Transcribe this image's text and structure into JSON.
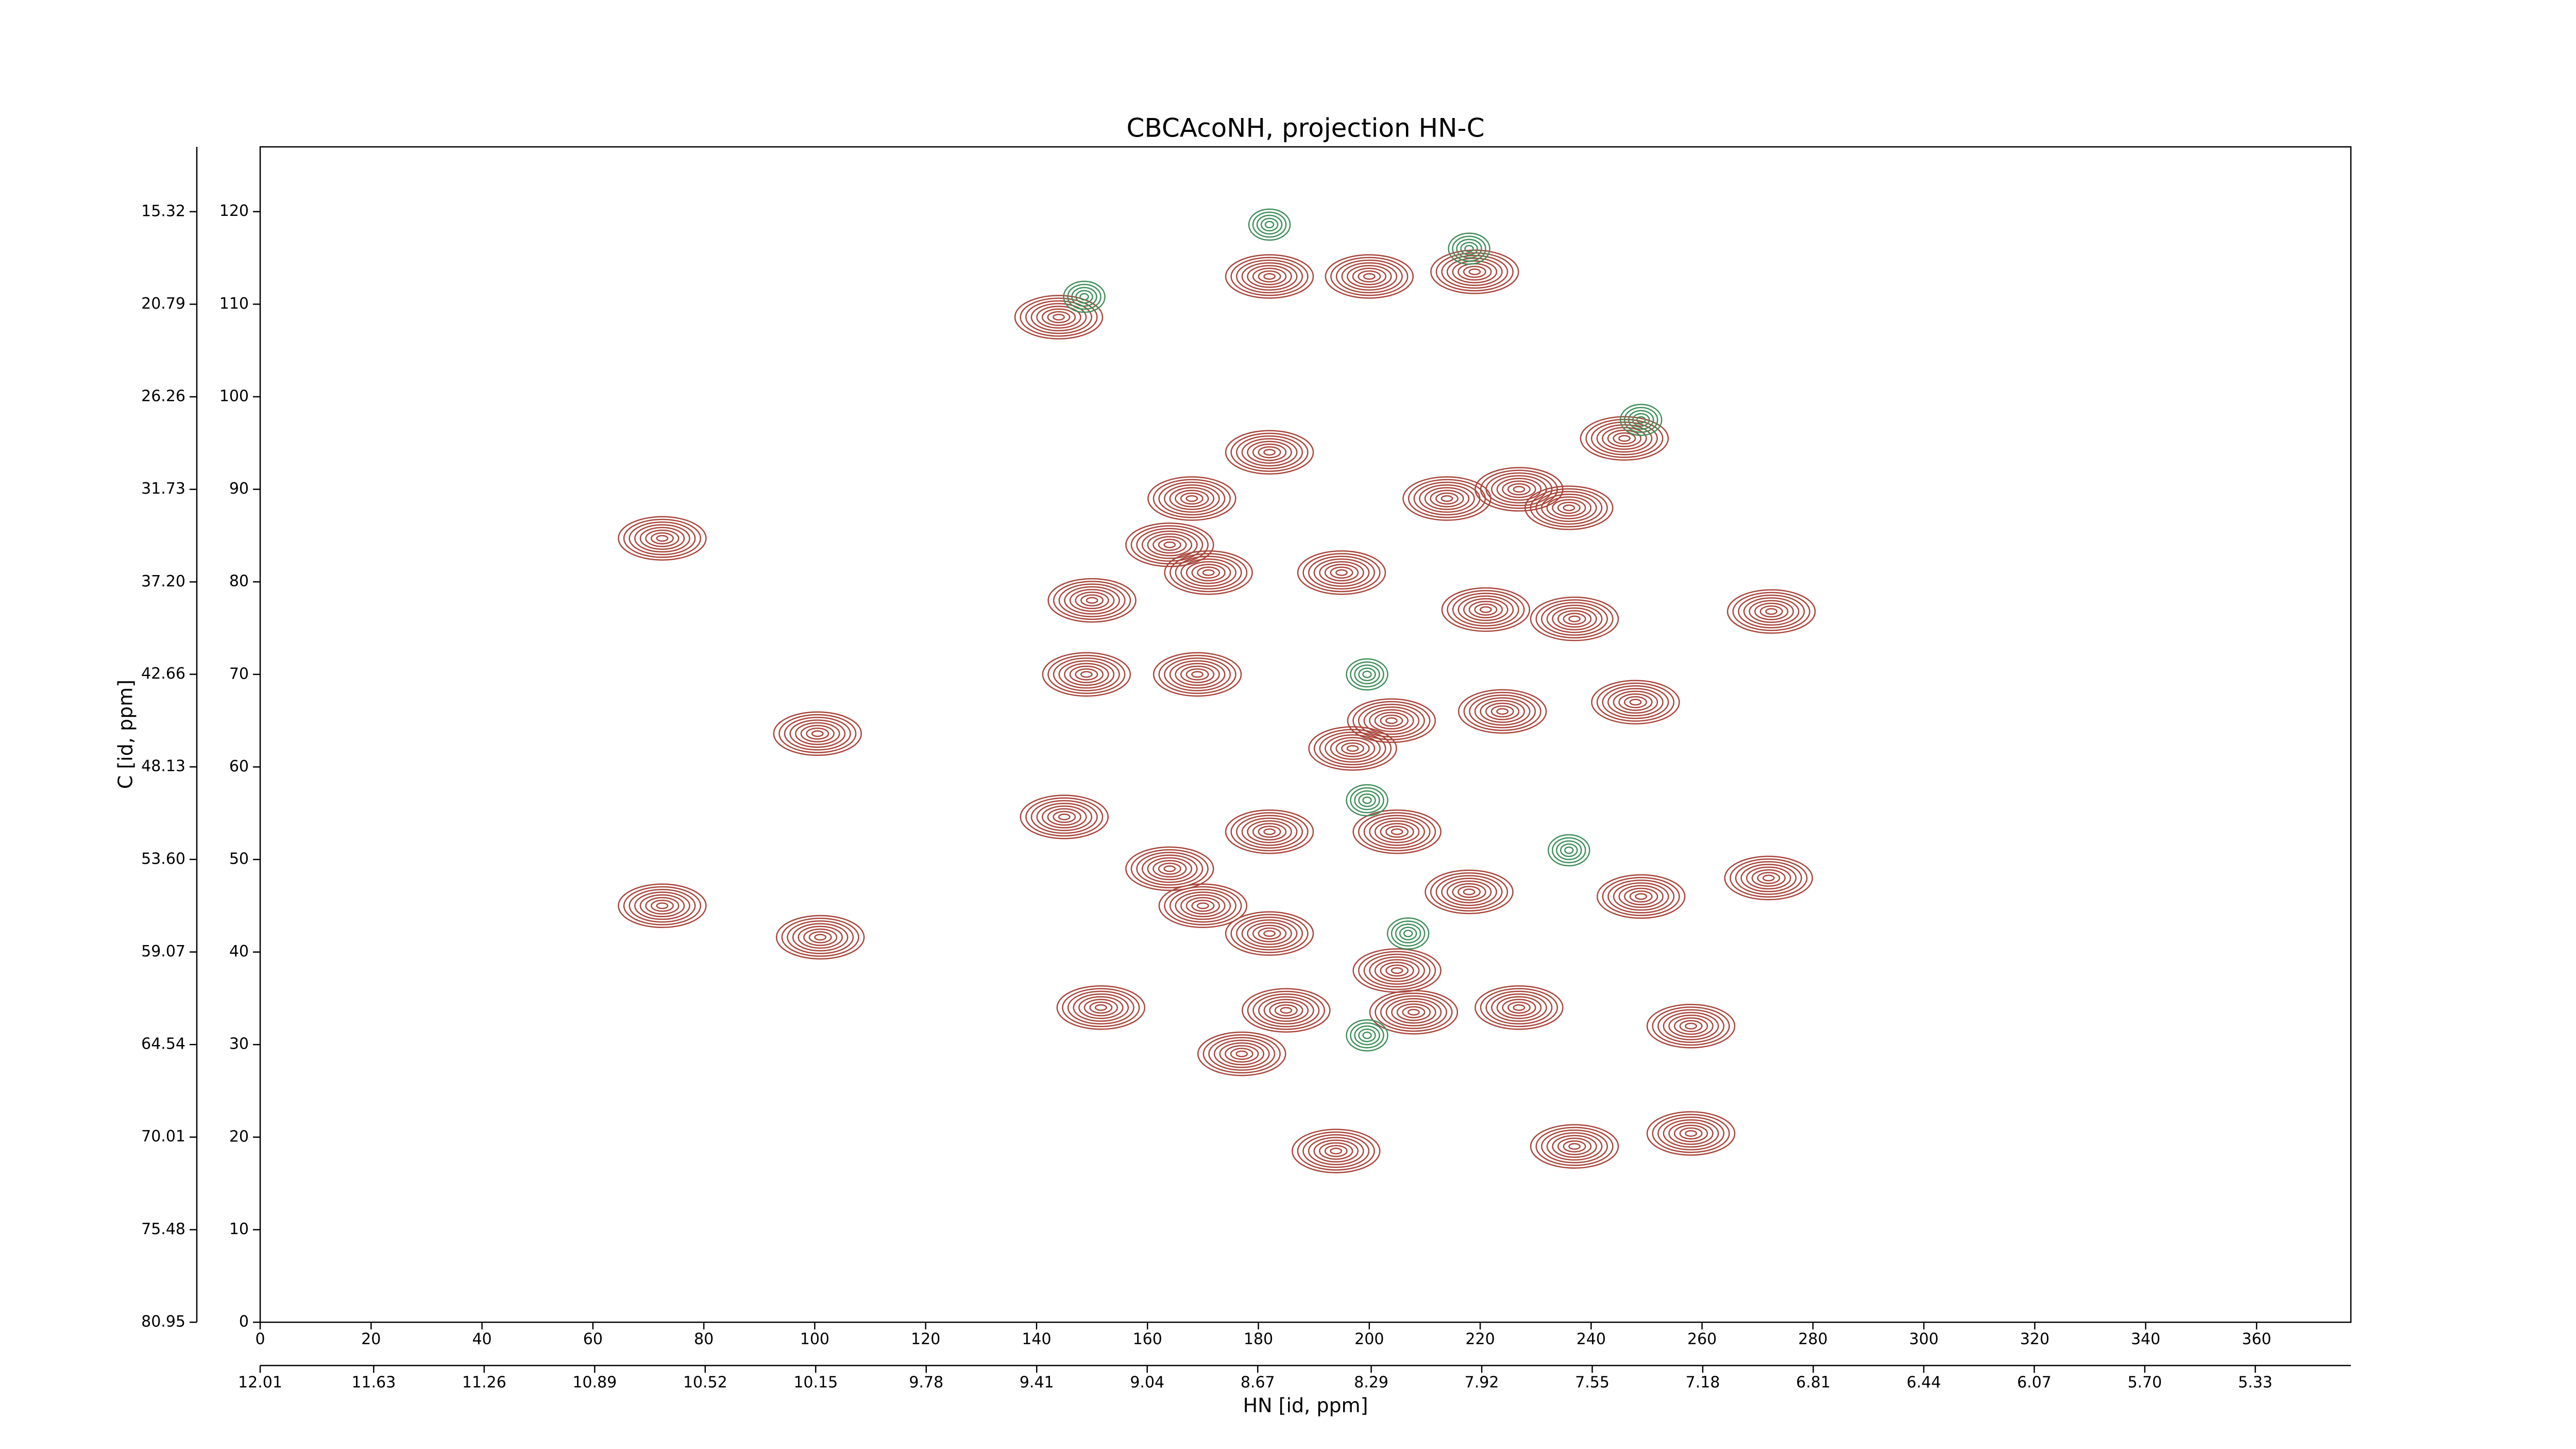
{
  "chart_data": {
    "type": "contour",
    "title": "CBCAcoNH, projection HN-C",
    "xlabel": "HN [id, ppm]",
    "ylabel": "C [id, ppm]",
    "xlim": [
      0,
      377
    ],
    "xticks": [
      0,
      20,
      40,
      60,
      80,
      100,
      120,
      140,
      160,
      180,
      200,
      220,
      240,
      260,
      280,
      300,
      320,
      340,
      360
    ],
    "x2lim": [
      12.01,
      5.01
    ],
    "x2ticks": [
      12.01,
      11.63,
      11.26,
      10.89,
      10.52,
      10.15,
      9.78,
      9.41,
      9.04,
      8.67,
      8.29,
      7.92,
      7.55,
      7.18,
      6.81,
      6.44,
      6.07,
      {
        "value": 5.7,
        "label": "5.70"
      },
      5.33
    ],
    "ylim": [
      0,
      127
    ],
    "yticks": [
      0,
      10,
      20,
      30,
      40,
      50,
      60,
      70,
      80,
      90,
      100,
      110,
      120
    ],
    "y2lim": [
      80.95,
      11.49
    ],
    "y2ticks": [
      80.95,
      75.48,
      70.01,
      64.54,
      59.07,
      {
        "value": 53.6,
        "label": "53.60"
      },
      48.13,
      42.66,
      {
        "value": 37.2,
        "label": "37.20"
      },
      31.73,
      26.26,
      20.79,
      15.32
    ],
    "positive": {
      "color": "#a8453a",
      "x": [
        144,
        182,
        219,
        200,
        72.5,
        246,
        182,
        168,
        227,
        236,
        214,
        164,
        171,
        150,
        221,
        237,
        169,
        204,
        224,
        248,
        100.5,
        197,
        145,
        182,
        205,
        164,
        170,
        218,
        249,
        72.5,
        101,
        182,
        205,
        151.6,
        185,
        208,
        227,
        258,
        177,
        237,
        258,
        272.5,
        272,
        149,
        195,
        194
      ],
      "y": [
        108.6,
        113,
        113.5,
        113,
        84.7,
        95.5,
        94,
        89,
        90,
        88,
        89,
        84,
        81,
        78,
        77,
        76,
        70,
        65,
        66,
        67,
        63.6,
        62,
        54.6,
        53,
        53,
        49,
        45,
        46.5,
        46,
        45,
        41.6,
        42,
        38,
        34,
        33.7,
        33.5,
        34,
        32,
        29,
        19,
        20.4,
        76.8,
        48,
        70,
        81,
        18.5
      ]
    },
    "negative": {
      "color": "#3f8f5a",
      "x": [
        182,
        148.6,
        199.6,
        199.6,
        207,
        199.6,
        249,
        218,
        236
      ],
      "y": [
        118.6,
        110.8,
        70,
        56.4,
        42,
        31,
        97.5,
        116,
        51
      ]
    }
  }
}
